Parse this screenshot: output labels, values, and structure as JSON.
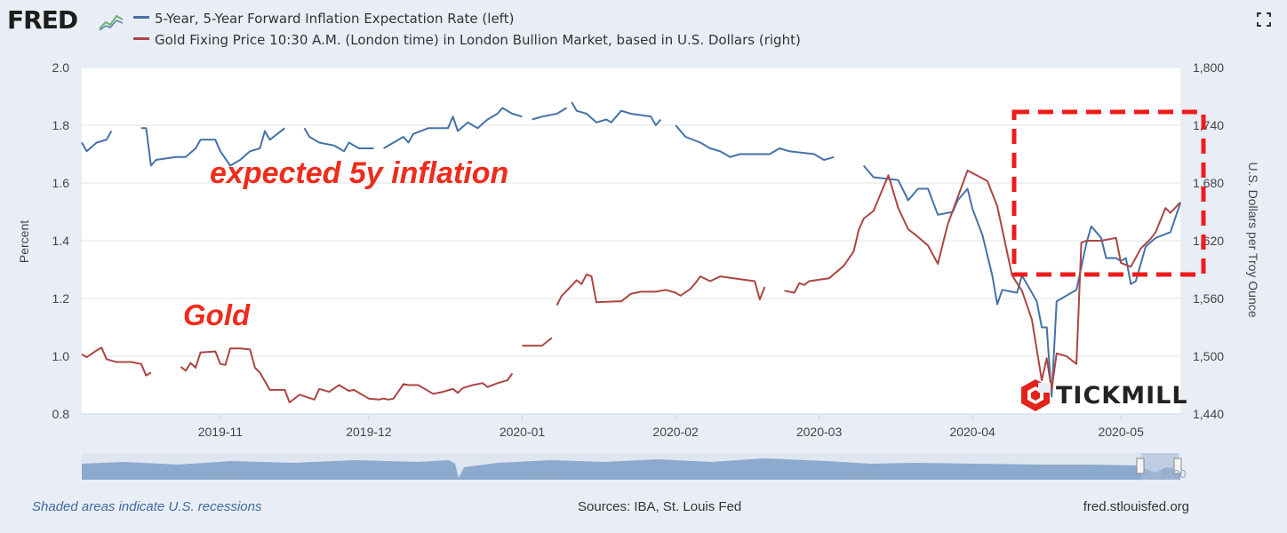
{
  "header": {
    "logo_text": "FRED",
    "logo_icon": "fred-chart-icon",
    "fullscreen_icon": "fullscreen-icon"
  },
  "footer": {
    "recession_note": "Shaded areas indicate U.S. recessions",
    "sources": "Sources: IBA, St. Louis Fed",
    "url": "fred.stlouisfed.org"
  },
  "annotations": {
    "inflation_label": "expected 5y inflation",
    "gold_label": "Gold",
    "highlight_color": "#ee1c1c"
  },
  "watermark": {
    "text": "TICKMILL",
    "icon": "tickmill-icon",
    "color": "#e0231b"
  },
  "chart_data": {
    "type": "line",
    "x_unit": "date",
    "xlim": [
      "2019-10-04",
      "2020-05-13"
    ],
    "x_ticks": [
      {
        "date": "2019-11-01",
        "label": "2019-11"
      },
      {
        "date": "2019-12-01",
        "label": "2019-12"
      },
      {
        "date": "2020-01-01",
        "label": "2020-01"
      },
      {
        "date": "2020-02-01",
        "label": "2020-02"
      },
      {
        "date": "2020-03-01",
        "label": "2020-03"
      },
      {
        "date": "2020-04-01",
        "label": "2020-04"
      },
      {
        "date": "2020-05-01",
        "label": "2020-05"
      }
    ],
    "y_left": {
      "label": "Percent",
      "range": [
        0.8,
        2.0
      ],
      "ticks": [
        {
          "value": 0.8,
          "label": "0.8"
        },
        {
          "value": 1.0,
          "label": "1.0"
        },
        {
          "value": 1.2,
          "label": "1.2"
        },
        {
          "value": 1.4,
          "label": "1.4"
        },
        {
          "value": 1.6,
          "label": "1.6"
        },
        {
          "value": 1.8,
          "label": "1.8"
        },
        {
          "value": 2.0,
          "label": "2.0"
        }
      ]
    },
    "y_right": {
      "label": "U.S. Dollars per Troy Ounce",
      "range": [
        1440,
        1800
      ],
      "ticks": [
        {
          "value": 1440,
          "label": "1,440"
        },
        {
          "value": 1500,
          "label": "1,500"
        },
        {
          "value": 1560,
          "label": "1,560"
        },
        {
          "value": 1620,
          "label": "1,620"
        },
        {
          "value": 1680,
          "label": "1,680"
        },
        {
          "value": 1740,
          "label": "1,740"
        },
        {
          "value": 1800,
          "label": "1,800"
        }
      ]
    },
    "grid": "horizontal",
    "legend_placement": "top-left",
    "series": [
      {
        "name": "5-Year, 5-Year Forward Inflation Expectation Rate (left)",
        "axis": "left",
        "color": "#4572a7",
        "points": [
          [
            "2019-10-04",
            1.74
          ],
          [
            "2019-10-05",
            1.71
          ],
          [
            "2019-10-07",
            1.74
          ],
          [
            "2019-10-09",
            1.75
          ],
          [
            "2019-10-10",
            1.78
          ],
          null,
          [
            "2019-10-16",
            1.79
          ],
          [
            "2019-10-17",
            1.79
          ],
          [
            "2019-10-18",
            1.66
          ],
          [
            "2019-10-19",
            1.68
          ],
          [
            "2019-10-23",
            1.69
          ],
          [
            "2019-10-25",
            1.69
          ],
          [
            "2019-10-27",
            1.72
          ],
          [
            "2019-10-28",
            1.75
          ],
          [
            "2019-10-31",
            1.75
          ],
          [
            "2019-11-01",
            1.71
          ],
          [
            "2019-11-03",
            1.66
          ],
          [
            "2019-11-05",
            1.68
          ],
          [
            "2019-11-07",
            1.71
          ],
          [
            "2019-11-09",
            1.72
          ],
          [
            "2019-11-10",
            1.78
          ],
          [
            "2019-11-11",
            1.75
          ],
          [
            "2019-11-14",
            1.79
          ],
          null,
          [
            "2019-11-18",
            1.79
          ],
          [
            "2019-11-19",
            1.76
          ],
          [
            "2019-11-21",
            1.74
          ],
          [
            "2019-11-24",
            1.73
          ],
          [
            "2019-11-26",
            1.71
          ],
          [
            "2019-11-27",
            1.74
          ],
          [
            "2019-11-29",
            1.72
          ],
          [
            "2019-12-01",
            1.72
          ],
          [
            "2019-12-02",
            1.72
          ],
          null,
          [
            "2019-12-04",
            1.72
          ],
          [
            "2019-12-06",
            1.74
          ],
          [
            "2019-12-08",
            1.76
          ],
          [
            "2019-12-09",
            1.74
          ],
          [
            "2019-12-10",
            1.77
          ],
          [
            "2019-12-13",
            1.79
          ],
          [
            "2019-12-17",
            1.79
          ],
          [
            "2019-12-18",
            1.83
          ],
          [
            "2019-12-19",
            1.78
          ],
          [
            "2019-12-21",
            1.81
          ],
          [
            "2019-12-23",
            1.79
          ],
          [
            "2019-12-25",
            1.82
          ],
          [
            "2019-12-27",
            1.84
          ],
          [
            "2019-12-28",
            1.86
          ],
          [
            "2019-12-30",
            1.84
          ],
          [
            "2020-01-01",
            1.83
          ],
          null,
          [
            "2020-01-03",
            1.82
          ],
          [
            "2020-01-05",
            1.83
          ],
          [
            "2020-01-08",
            1.84
          ],
          [
            "2020-01-10",
            1.86
          ],
          null,
          [
            "2020-01-11",
            1.88
          ],
          [
            "2020-01-12",
            1.85
          ],
          [
            "2020-01-14",
            1.84
          ],
          [
            "2020-01-16",
            1.81
          ],
          [
            "2020-01-18",
            1.82
          ],
          [
            "2020-01-19",
            1.81
          ],
          [
            "2020-01-21",
            1.85
          ],
          [
            "2020-01-23",
            1.84
          ],
          [
            "2020-01-27",
            1.83
          ],
          [
            "2020-01-28",
            1.8
          ],
          [
            "2020-01-29",
            1.82
          ],
          null,
          [
            "2020-02-01",
            1.8
          ],
          [
            "2020-02-03",
            1.76
          ],
          [
            "2020-02-06",
            1.74
          ],
          [
            "2020-02-08",
            1.72
          ],
          [
            "2020-02-10",
            1.71
          ],
          [
            "2020-02-12",
            1.69
          ],
          [
            "2020-02-14",
            1.7
          ],
          [
            "2020-02-17",
            1.7
          ],
          [
            "2020-02-20",
            1.7
          ],
          [
            "2020-02-22",
            1.72
          ],
          [
            "2020-02-24",
            1.71
          ],
          [
            "2020-02-29",
            1.7
          ],
          [
            "2020-03-02",
            1.68
          ],
          [
            "2020-03-04",
            1.69
          ],
          null,
          [
            "2020-03-06",
            1.68
          ],
          null,
          [
            "2020-03-10",
            1.66
          ],
          [
            "2020-03-12",
            1.62
          ],
          [
            "2020-03-17",
            1.61
          ],
          [
            "2020-03-19",
            1.54
          ],
          [
            "2020-03-21",
            1.58
          ],
          [
            "2020-03-23",
            1.58
          ],
          [
            "2020-03-25",
            1.49
          ],
          [
            "2020-03-28",
            1.5
          ],
          [
            "2020-03-29",
            1.54
          ],
          [
            "2020-03-31",
            1.58
          ],
          [
            "2020-04-01",
            1.51
          ],
          [
            "2020-04-03",
            1.42
          ],
          [
            "2020-04-05",
            1.28
          ],
          [
            "2020-04-06",
            1.18
          ],
          [
            "2020-04-07",
            1.23
          ],
          [
            "2020-04-10",
            1.22
          ],
          [
            "2020-04-11",
            1.28
          ],
          [
            "2020-04-12",
            1.25
          ],
          [
            "2020-04-14",
            1.19
          ],
          [
            "2020-04-15",
            1.1
          ],
          [
            "2020-04-16",
            1.1
          ],
          [
            "2020-04-17",
            0.86
          ],
          [
            "2020-04-18",
            1.19
          ],
          [
            "2020-04-20",
            1.21
          ],
          [
            "2020-04-22",
            1.23
          ],
          [
            "2020-04-24",
            1.39
          ],
          [
            "2020-04-25",
            1.45
          ],
          [
            "2020-04-27",
            1.41
          ],
          [
            "2020-04-28",
            1.34
          ],
          [
            "2020-04-30",
            1.34
          ],
          [
            "2020-05-01",
            1.33
          ],
          [
            "2020-05-02",
            1.34
          ],
          [
            "2020-05-03",
            1.25
          ],
          [
            "2020-05-04",
            1.26
          ],
          [
            "2020-05-06",
            1.38
          ],
          [
            "2020-05-08",
            1.41
          ],
          [
            "2020-05-11",
            1.43
          ],
          [
            "2020-05-12",
            1.48
          ],
          [
            "2020-05-13",
            1.53
          ]
        ]
      },
      {
        "name": "Gold Fixing Price 10:30 A.M. (London time) in London Bullion Market, based in U.S. Dollars (right)",
        "axis": "right",
        "color": "#aa4643",
        "points": [
          [
            "2019-10-04",
            1502
          ],
          [
            "2019-10-05",
            1499
          ],
          [
            "2019-10-07",
            1506
          ],
          [
            "2019-10-08",
            1509
          ],
          [
            "2019-10-09",
            1497
          ],
          [
            "2019-10-11",
            1494
          ],
          [
            "2019-10-14",
            1494
          ],
          [
            "2019-10-16",
            1492
          ],
          [
            "2019-10-17",
            1480
          ],
          [
            "2019-10-18",
            1483
          ],
          null,
          [
            "2019-10-24",
            1489
          ],
          [
            "2019-10-25",
            1485
          ],
          [
            "2019-10-26",
            1493
          ],
          [
            "2019-10-27",
            1488
          ],
          [
            "2019-10-28",
            1504
          ],
          [
            "2019-10-31",
            1505
          ],
          [
            "2019-11-01",
            1492
          ],
          [
            "2019-11-02",
            1491
          ],
          [
            "2019-11-03",
            1508
          ],
          [
            "2019-11-05",
            1508
          ],
          [
            "2019-11-07",
            1507
          ],
          [
            "2019-11-08",
            1488
          ],
          [
            "2019-11-09",
            1483
          ],
          [
            "2019-11-11",
            1465
          ],
          [
            "2019-11-14",
            1465
          ],
          [
            "2019-11-15",
            1452
          ],
          [
            "2019-11-17",
            1460
          ],
          [
            "2019-11-20",
            1455
          ],
          [
            "2019-11-21",
            1466
          ],
          [
            "2019-11-23",
            1463
          ],
          [
            "2019-11-25",
            1470
          ],
          [
            "2019-11-27",
            1464
          ],
          [
            "2019-11-28",
            1465
          ],
          [
            "2019-12-01",
            1456
          ],
          [
            "2019-12-03",
            1455
          ],
          [
            "2019-12-04",
            1456
          ],
          [
            "2019-12-05",
            1455
          ],
          [
            "2019-12-06",
            1456
          ],
          [
            "2019-12-08",
            1471
          ],
          [
            "2019-12-09",
            1470
          ],
          [
            "2019-12-11",
            1470
          ],
          [
            "2019-12-14",
            1461
          ],
          [
            "2019-12-16",
            1463
          ],
          [
            "2019-12-18",
            1466
          ],
          [
            "2019-12-19",
            1462
          ],
          [
            "2019-12-20",
            1467
          ],
          [
            "2019-12-22",
            1470
          ],
          [
            "2019-12-24",
            1472
          ],
          [
            "2019-12-25",
            1468
          ],
          [
            "2019-12-27",
            1472
          ],
          [
            "2019-12-29",
            1475
          ],
          [
            "2019-12-30",
            1482
          ],
          null,
          [
            "2020-01-01",
            1511
          ],
          [
            "2020-01-05",
            1511
          ],
          [
            "2020-01-07",
            1519
          ],
          null,
          [
            "2020-01-08",
            1553
          ],
          [
            "2020-01-09",
            1563
          ],
          [
            "2020-01-10",
            1568
          ],
          [
            "2020-01-12",
            1579
          ],
          [
            "2020-01-13",
            1575
          ],
          [
            "2020-01-14",
            1585
          ],
          [
            "2020-01-15",
            1583
          ],
          [
            "2020-01-16",
            1556
          ],
          [
            "2020-01-20",
            1557
          ],
          [
            "2020-01-21",
            1557
          ],
          [
            "2020-01-23",
            1565
          ],
          [
            "2020-01-25",
            1567
          ],
          [
            "2020-01-28",
            1567
          ],
          [
            "2020-01-30",
            1569
          ],
          [
            "2020-02-01",
            1566
          ],
          [
            "2020-02-02",
            1563
          ],
          [
            "2020-02-04",
            1570
          ],
          [
            "2020-02-05",
            1576
          ],
          [
            "2020-02-06",
            1583
          ],
          [
            "2020-02-08",
            1578
          ],
          [
            "2020-02-10",
            1583
          ],
          [
            "2020-02-14",
            1580
          ],
          [
            "2020-02-17",
            1578
          ],
          [
            "2020-02-18",
            1559
          ],
          [
            "2020-02-19",
            1572
          ],
          null,
          [
            "2020-02-23",
            1568
          ],
          [
            "2020-02-25",
            1566
          ],
          [
            "2020-02-26",
            1576
          ],
          [
            "2020-02-27",
            1574
          ],
          [
            "2020-02-28",
            1578
          ],
          [
            "2020-03-03",
            1581
          ],
          [
            "2020-03-06",
            1594
          ],
          [
            "2020-03-08",
            1609
          ],
          [
            "2020-03-09",
            1631
          ],
          [
            "2020-03-10",
            1643
          ],
          [
            "2020-03-12",
            1651
          ],
          [
            "2020-03-15",
            1688
          ],
          [
            "2020-03-17",
            1654
          ],
          [
            "2020-03-19",
            1632
          ],
          [
            "2020-03-21",
            1624
          ],
          [
            "2020-03-23",
            1615
          ],
          [
            "2020-03-25",
            1596
          ],
          [
            "2020-03-27",
            1637
          ],
          [
            "2020-03-31",
            1693
          ],
          [
            "2020-04-04",
            1682
          ],
          [
            "2020-04-06",
            1656
          ],
          [
            "2020-04-09",
            1584
          ],
          [
            "2020-04-11",
            1568
          ],
          [
            "2020-04-13",
            1538
          ],
          [
            "2020-04-15",
            1475
          ],
          [
            "2020-04-16",
            1498
          ],
          [
            "2020-04-17",
            1465
          ],
          [
            "2020-04-18",
            1503
          ],
          [
            "2020-04-20",
            1500
          ],
          [
            "2020-04-22",
            1492
          ],
          [
            "2020-04-23",
            1618
          ],
          [
            "2020-04-24",
            1620
          ],
          [
            "2020-04-27",
            1620
          ],
          [
            "2020-04-30",
            1623
          ],
          [
            "2020-05-01",
            1597
          ],
          [
            "2020-05-03",
            1593
          ],
          [
            "2020-05-05",
            1612
          ],
          [
            "2020-05-07",
            1622
          ],
          [
            "2020-05-08",
            1629
          ],
          [
            "2020-05-10",
            1654
          ],
          [
            "2020-05-11",
            1649
          ],
          [
            "2020-05-13",
            1660
          ]
        ]
      }
    ]
  }
}
